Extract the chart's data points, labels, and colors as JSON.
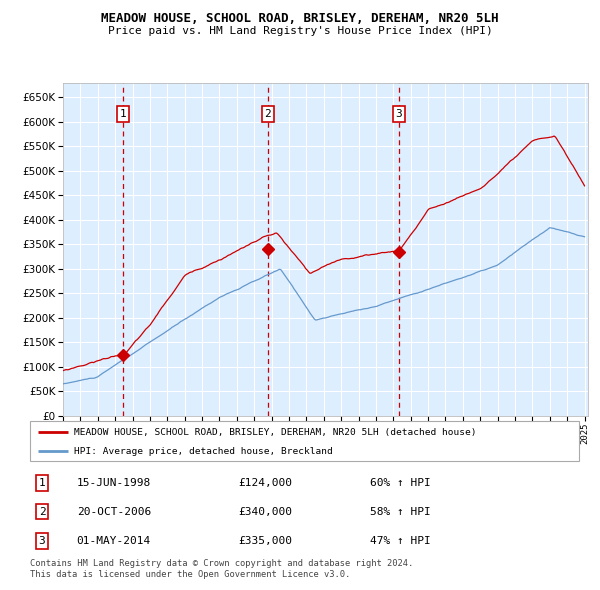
{
  "title": "MEADOW HOUSE, SCHOOL ROAD, BRISLEY, DEREHAM, NR20 5LH",
  "subtitle": "Price paid vs. HM Land Registry's House Price Index (HPI)",
  "legend_line1": "MEADOW HOUSE, SCHOOL ROAD, BRISLEY, DEREHAM, NR20 5LH (detached house)",
  "legend_line2": "HPI: Average price, detached house, Breckland",
  "sale1_date": "15-JUN-1998",
  "sale1_price": 124000,
  "sale1_hpi": "60% ↑ HPI",
  "sale2_date": "20-OCT-2006",
  "sale2_price": 340000,
  "sale2_hpi": "58% ↑ HPI",
  "sale3_date": "01-MAY-2014",
  "sale3_price": 335000,
  "sale3_hpi": "47% ↑ HPI",
  "footnote": "Contains HM Land Registry data © Crown copyright and database right 2024.\nThis data is licensed under the Open Government Licence v3.0.",
  "red_color": "#cc0000",
  "blue_color": "#6699cc",
  "bg_color": "#ddeeff",
  "grid_color": "#ffffff",
  "ylim": [
    0,
    680000
  ],
  "yticks": [
    0,
    50000,
    100000,
    150000,
    200000,
    250000,
    300000,
    350000,
    400000,
    450000,
    500000,
    550000,
    600000,
    650000
  ],
  "sale1_x": 1998.458,
  "sale2_x": 2006.792,
  "sale3_x": 2014.333
}
